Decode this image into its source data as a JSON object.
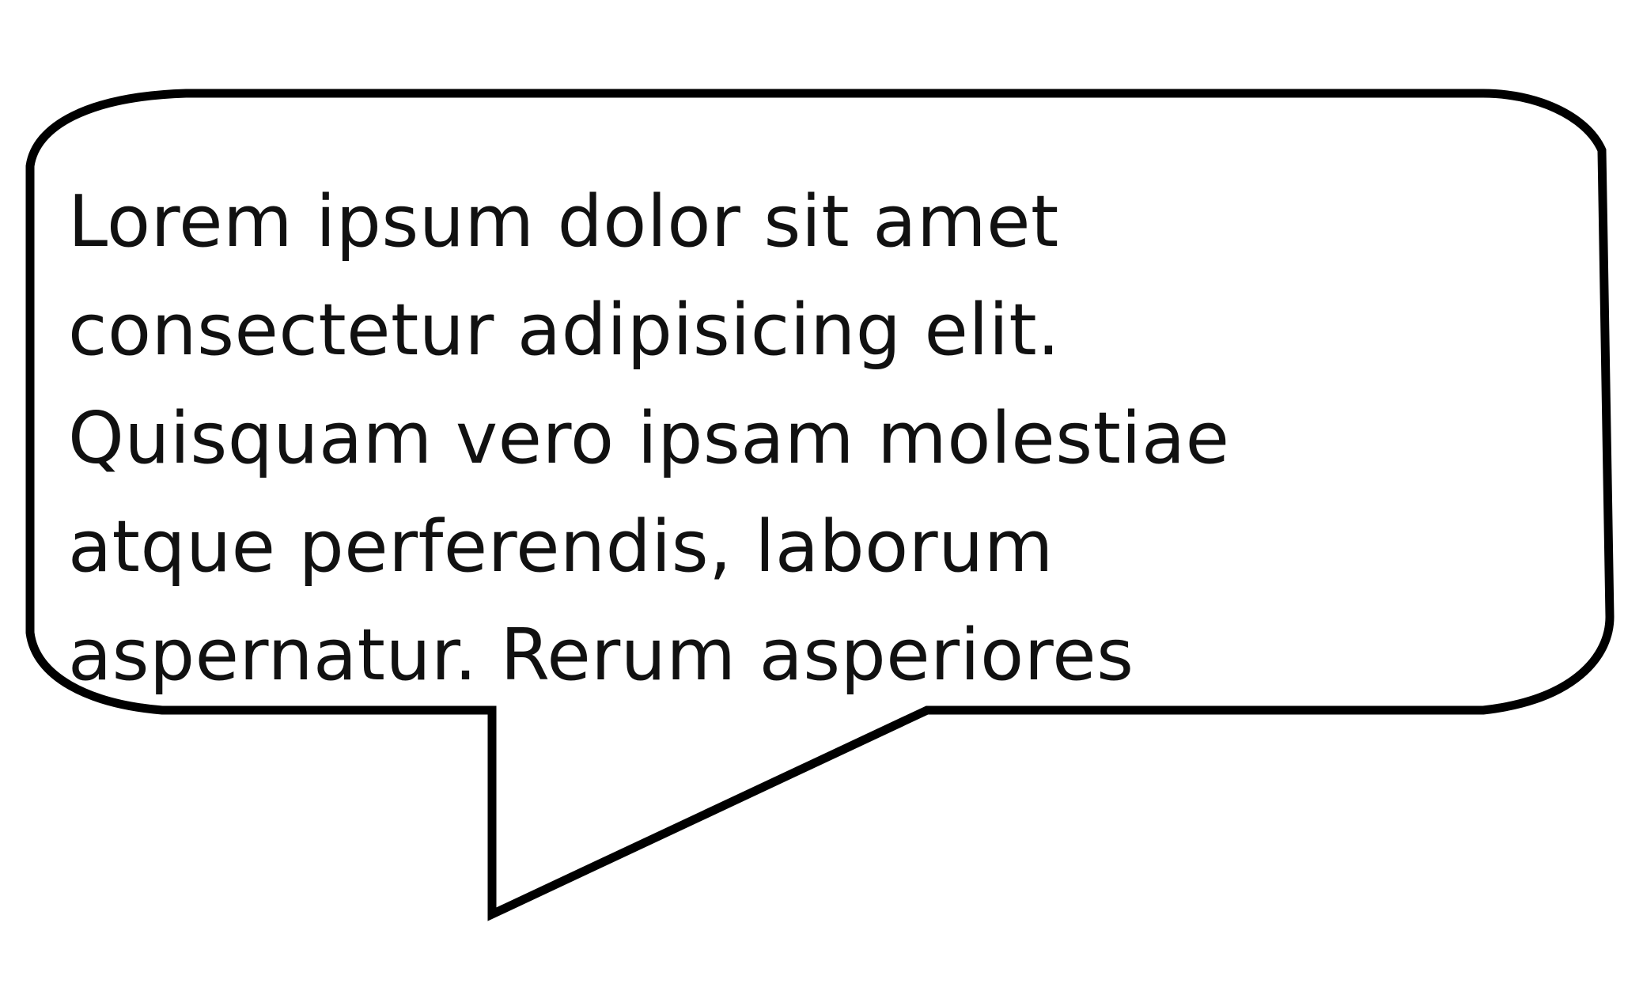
{
  "speech_bubble": {
    "lines": [
      "Lorem ipsum dolor sit amet",
      "consectetur adipisicing elit.",
      "Quisquam vero ipsam molestiae",
      "atque perferendis, laborum",
      "aspernatur. Rerum asperiores"
    ],
    "fill_color": "#ffffff",
    "stroke_color": "#000000",
    "text_color": "#111111"
  }
}
